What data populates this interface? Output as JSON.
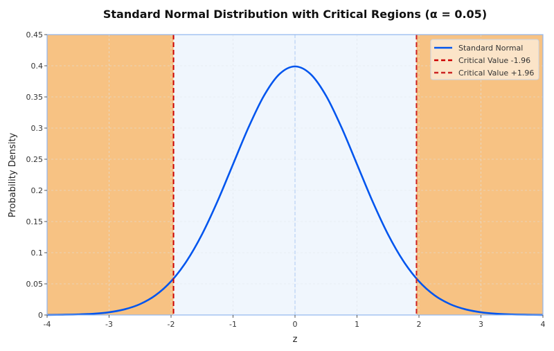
{
  "chart_data": {
    "type": "line",
    "title": "Standard Normal Distribution with Critical Regions (α = 0.05)",
    "xlabel": "z",
    "ylabel": "Probability Density",
    "xlim": [
      -4,
      4
    ],
    "ylim": [
      0,
      0.45
    ],
    "xticks": [
      "-4",
      "-3",
      "-2",
      "-1",
      "0",
      "1",
      "2",
      "3",
      "4"
    ],
    "yticks": [
      "0",
      "0.05",
      "0.1",
      "0.15",
      "0.2",
      "0.25",
      "0.3",
      "0.35",
      "0.4",
      "0.45"
    ],
    "grid": true,
    "legend_placement": "top-right",
    "series": [
      {
        "name": "Standard Normal",
        "color": "#0055ee",
        "style": "solid",
        "x": [
          -4,
          -3.75,
          -3.5,
          -3.25,
          -3,
          -2.75,
          -2.5,
          -2.25,
          -2,
          -1.75,
          -1.5,
          -1.25,
          -1,
          -0.75,
          -0.5,
          -0.25,
          0,
          0.25,
          0.5,
          0.75,
          1,
          1.25,
          1.5,
          1.75,
          2,
          2.25,
          2.5,
          2.75,
          3,
          3.25,
          3.5,
          3.75,
          4
        ],
        "y": [
          0.0001,
          0.0004,
          0.0009,
          0.002,
          0.0044,
          0.0091,
          0.0175,
          0.0317,
          0.054,
          0.0863,
          0.1295,
          0.1826,
          0.242,
          0.3011,
          0.3521,
          0.3867,
          0.3989,
          0.3867,
          0.3521,
          0.3011,
          0.242,
          0.1826,
          0.1295,
          0.0863,
          0.054,
          0.0317,
          0.0175,
          0.0091,
          0.0044,
          0.002,
          0.0009,
          0.0004,
          0.0001
        ]
      },
      {
        "name": "Critical Value -1.96",
        "color": "#cc0000",
        "style": "dashed",
        "x_value": -1.96
      },
      {
        "name": "Critical Value +1.96",
        "color": "#cc2222",
        "style": "dashed",
        "x_value": 1.96
      }
    ],
    "regions": [
      {
        "from": -4,
        "to": -1.96,
        "color": "#f7c283",
        "label": "critical"
      },
      {
        "from": -1.96,
        "to": 1.96,
        "color": "#f0f6fd",
        "label": "acceptance"
      },
      {
        "from": 1.96,
        "to": 4,
        "color": "#f7c283",
        "label": "critical"
      }
    ],
    "center_line": {
      "x_value": 0,
      "color": "#b7d0f5"
    }
  }
}
